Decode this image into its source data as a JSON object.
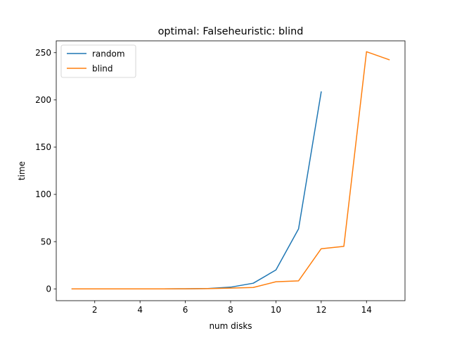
{
  "chart_data": {
    "type": "line",
    "title": "optimal: Falseheuristic: blind",
    "xlabel": "num disks",
    "ylabel": "time",
    "xlim": [
      0.3,
      15.7
    ],
    "ylim": [
      -12.5,
      262.5
    ],
    "xticks": [
      2,
      4,
      6,
      8,
      10,
      12,
      14
    ],
    "yticks": [
      0,
      50,
      100,
      150,
      200,
      250
    ],
    "grid": false,
    "legend_position": "top-left",
    "series": [
      {
        "name": "random",
        "color": "#1f77b4",
        "x": [
          1,
          2,
          3,
          4,
          5,
          6,
          7,
          8,
          9,
          10,
          11,
          12
        ],
        "y": [
          0,
          0,
          0,
          0,
          0,
          0.1,
          0.4,
          1.8,
          6,
          20,
          63.5,
          208.5
        ]
      },
      {
        "name": "blind",
        "color": "#ff7f0e",
        "x": [
          1,
          2,
          3,
          4,
          5,
          6,
          7,
          8,
          9,
          10,
          11,
          12,
          13,
          14,
          15
        ],
        "y": [
          0,
          0,
          0,
          0,
          0,
          0.1,
          0.3,
          0.8,
          1.5,
          7.5,
          8.5,
          42.5,
          45,
          251,
          242.5
        ]
      }
    ]
  }
}
